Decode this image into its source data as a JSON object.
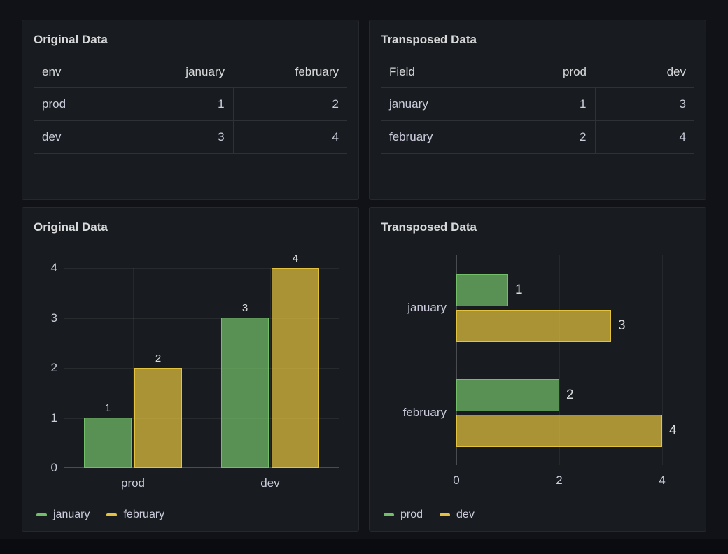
{
  "colors": {
    "green": "#73bf69",
    "yellow": "#e2c23f",
    "page_bg": "#111217",
    "panel_bg": "#181b1f",
    "text": "#ccccdc"
  },
  "panels": {
    "table_original": {
      "title": "Original Data",
      "columns": [
        "env",
        "january",
        "february"
      ],
      "rows": [
        [
          "prod",
          "1",
          "2"
        ],
        [
          "dev",
          "3",
          "4"
        ]
      ]
    },
    "table_transposed": {
      "title": "Transposed Data",
      "columns": [
        "Field",
        "prod",
        "dev"
      ],
      "rows": [
        [
          "january",
          "1",
          "3"
        ],
        [
          "february",
          "2",
          "4"
        ]
      ]
    }
  },
  "chart_data": [
    {
      "type": "bar",
      "orientation": "vertical",
      "title": "Original Data",
      "categories": [
        "prod",
        "dev"
      ],
      "series": [
        {
          "name": "january",
          "color": "#73bf69",
          "values": [
            1,
            3
          ]
        },
        {
          "name": "february",
          "color": "#e2c23f",
          "values": [
            2,
            4
          ]
        }
      ],
      "ylim": [
        0,
        4
      ],
      "yticks": [
        0,
        1,
        2,
        3,
        4
      ],
      "value_labels": true,
      "grid": true,
      "legend_position": "bottom-left"
    },
    {
      "type": "bar",
      "orientation": "horizontal",
      "title": "Transposed Data",
      "categories": [
        "january",
        "february"
      ],
      "series": [
        {
          "name": "prod",
          "color": "#73bf69",
          "values": [
            1,
            2
          ]
        },
        {
          "name": "dev",
          "color": "#e2c23f",
          "values": [
            3,
            4
          ]
        }
      ],
      "xlim": [
        0,
        4
      ],
      "xticks": [
        0,
        2,
        4
      ],
      "value_labels": true,
      "grid": true,
      "legend_position": "bottom-left"
    }
  ]
}
